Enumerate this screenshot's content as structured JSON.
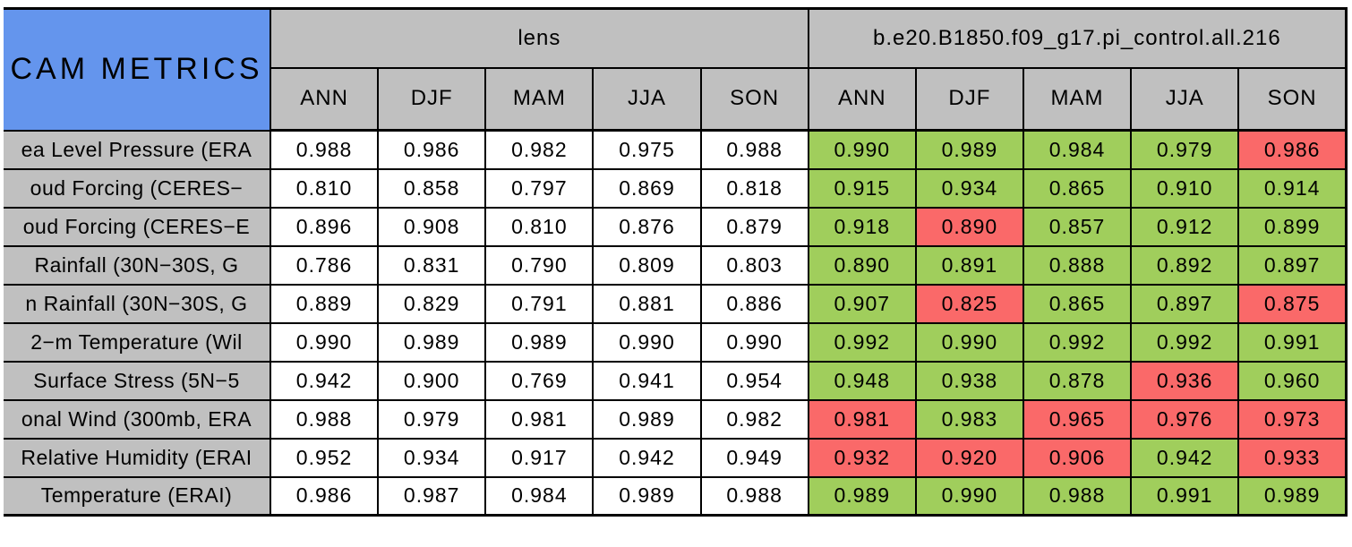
{
  "colors": {
    "title_bg": "#6495ED",
    "header_bg": "#C0C0C0",
    "label_bg": "#C0C0C0",
    "better": "#A0CE5C",
    "worse": "#FA6969",
    "border": "#000000",
    "base_cell": "#FFFFFF"
  },
  "chart_data": {
    "type": "table",
    "title": "CAM METRICS",
    "column_groups": [
      "lens",
      "b.e20.B1850.f09_g17.pi_control.all.216"
    ],
    "seasons": [
      "ANN",
      "DJF",
      "MAM",
      "JJA",
      "SON"
    ],
    "color_key": [
      "better",
      "worse"
    ],
    "rows": [
      {
        "label": "ea Level Pressure (ERA",
        "lens": [
          "0.988",
          "0.986",
          "0.982",
          "0.975",
          "0.988"
        ],
        "case": [
          "0.990",
          "0.989",
          "0.984",
          "0.979",
          "0.986"
        ],
        "case_colors": [
          "better",
          "better",
          "better",
          "better",
          "worse"
        ]
      },
      {
        "label": "oud Forcing (CERES−",
        "lens": [
          "0.810",
          "0.858",
          "0.797",
          "0.869",
          "0.818"
        ],
        "case": [
          "0.915",
          "0.934",
          "0.865",
          "0.910",
          "0.914"
        ],
        "case_colors": [
          "better",
          "better",
          "better",
          "better",
          "better"
        ]
      },
      {
        "label": "oud Forcing (CERES−E",
        "lens": [
          "0.896",
          "0.908",
          "0.810",
          "0.876",
          "0.879"
        ],
        "case": [
          "0.918",
          "0.890",
          "0.857",
          "0.912",
          "0.899"
        ],
        "case_colors": [
          "better",
          "worse",
          "better",
          "better",
          "better"
        ]
      },
      {
        "label": "Rainfall (30N−30S, G",
        "lens": [
          "0.786",
          "0.831",
          "0.790",
          "0.809",
          "0.803"
        ],
        "case": [
          "0.890",
          "0.891",
          "0.888",
          "0.892",
          "0.897"
        ],
        "case_colors": [
          "better",
          "better",
          "better",
          "better",
          "better"
        ]
      },
      {
        "label": "n Rainfall (30N−30S, G",
        "lens": [
          "0.889",
          "0.829",
          "0.791",
          "0.881",
          "0.886"
        ],
        "case": [
          "0.907",
          "0.825",
          "0.865",
          "0.897",
          "0.875"
        ],
        "case_colors": [
          "better",
          "worse",
          "better",
          "better",
          "worse"
        ]
      },
      {
        "label": "2−m Temperature (Wil",
        "lens": [
          "0.990",
          "0.989",
          "0.989",
          "0.990",
          "0.990"
        ],
        "case": [
          "0.992",
          "0.990",
          "0.992",
          "0.992",
          "0.991"
        ],
        "case_colors": [
          "better",
          "better",
          "better",
          "better",
          "better"
        ]
      },
      {
        "label": "Surface Stress (5N−5",
        "lens": [
          "0.942",
          "0.900",
          "0.769",
          "0.941",
          "0.954"
        ],
        "case": [
          "0.948",
          "0.938",
          "0.878",
          "0.936",
          "0.960"
        ],
        "case_colors": [
          "better",
          "better",
          "better",
          "worse",
          "better"
        ]
      },
      {
        "label": "onal Wind (300mb, ERA",
        "lens": [
          "0.988",
          "0.979",
          "0.981",
          "0.989",
          "0.982"
        ],
        "case": [
          "0.981",
          "0.983",
          "0.965",
          "0.976",
          "0.973"
        ],
        "case_colors": [
          "worse",
          "better",
          "worse",
          "worse",
          "worse"
        ]
      },
      {
        "label": "Relative Humidity (ERAI",
        "lens": [
          "0.952",
          "0.934",
          "0.917",
          "0.942",
          "0.949"
        ],
        "case": [
          "0.932",
          "0.920",
          "0.906",
          "0.942",
          "0.933"
        ],
        "case_colors": [
          "worse",
          "worse",
          "worse",
          "better",
          "worse"
        ]
      },
      {
        "label": "Temperature (ERAI)",
        "lens": [
          "0.986",
          "0.987",
          "0.984",
          "0.989",
          "0.988"
        ],
        "case": [
          "0.989",
          "0.990",
          "0.988",
          "0.991",
          "0.989"
        ],
        "case_colors": [
          "better",
          "better",
          "better",
          "better",
          "better"
        ]
      }
    ]
  }
}
